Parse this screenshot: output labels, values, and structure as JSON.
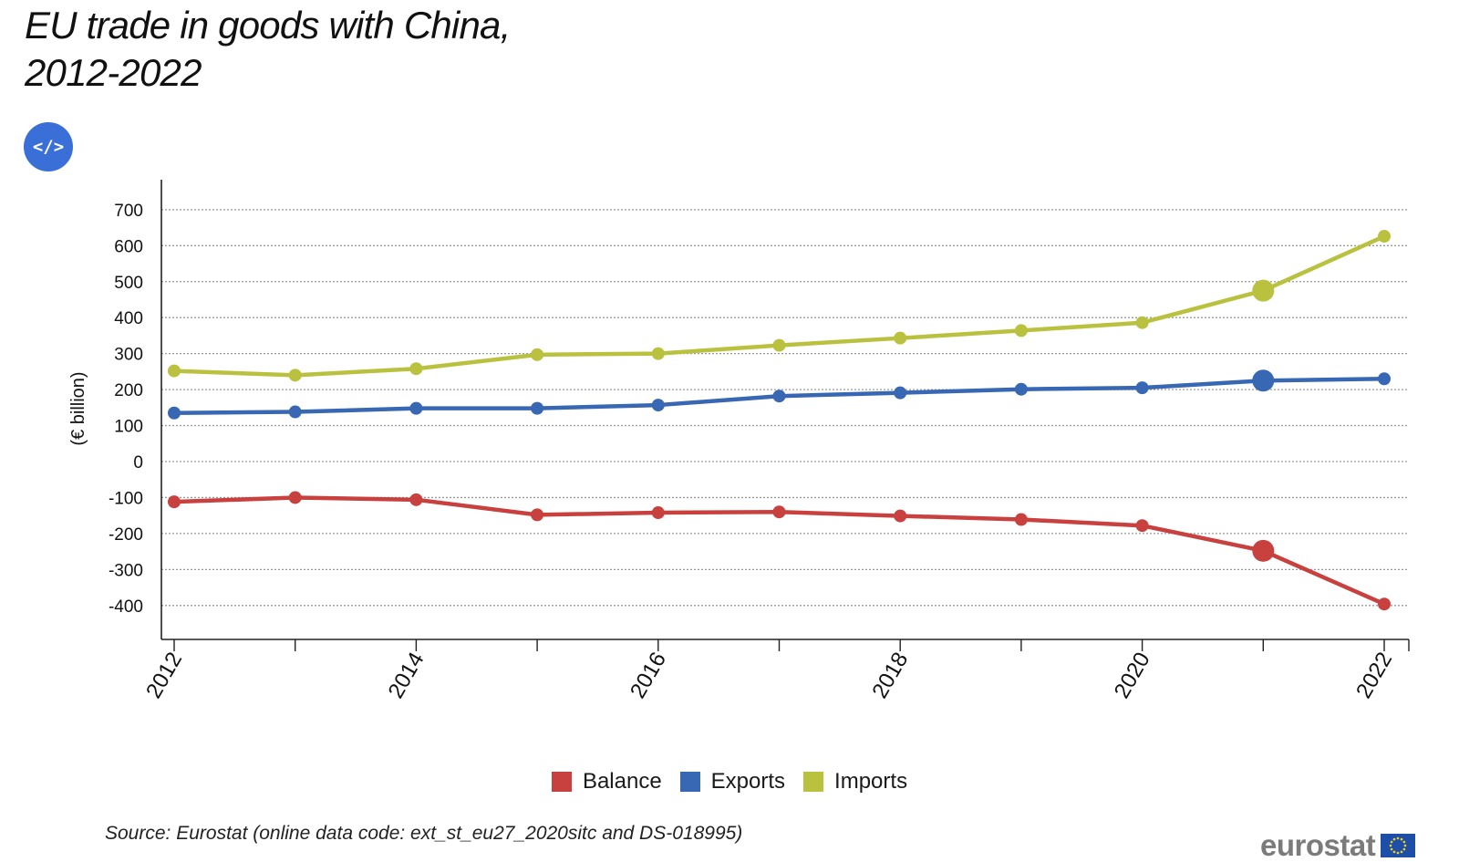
{
  "title_lines": [
    "EU trade in goods with China,",
    "2012-2022"
  ],
  "embed_button_label": "</>",
  "source": "Source: Eurostat (online data code: ext_st_eu27_2020sitc and DS-018995)",
  "logo_text": "eurostat",
  "colors": {
    "balance": "#c9413f",
    "exports": "#3867b3",
    "imports": "#b9c13f",
    "embed_button": "#3a6fd8"
  },
  "chart_data": {
    "type": "line",
    "title": "EU trade in goods with China, 2012-2022",
    "ylabel": "(€ billion)",
    "xlabel": "",
    "ylim": [
      -500,
      800
    ],
    "yticks": [
      700,
      600,
      500,
      400,
      300,
      200,
      100,
      0,
      -100,
      -200,
      -300,
      -400
    ],
    "x": [
      2012,
      2013,
      2014,
      2015,
      2016,
      2017,
      2018,
      2019,
      2020,
      2021,
      2022
    ],
    "xtick_labels": [
      "2012",
      "2014",
      "2016",
      "2018",
      "2020",
      "2022"
    ],
    "highlight_x": 2021,
    "grid": true,
    "legend_position": "bottom",
    "series": [
      {
        "name": "Balance",
        "color": "#c9413f",
        "values": [
          -112,
          -100,
          -106,
          -148,
          -142,
          -140,
          -151,
          -161,
          -178,
          -248,
          -396
        ]
      },
      {
        "name": "Exports",
        "color": "#3867b3",
        "values": [
          135,
          138,
          148,
          148,
          157,
          182,
          191,
          201,
          205,
          225,
          230
        ]
      },
      {
        "name": "Imports",
        "color": "#b9c13f",
        "values": [
          252,
          240,
          258,
          297,
          300,
          323,
          343,
          364,
          386,
          475,
          626
        ]
      }
    ]
  }
}
